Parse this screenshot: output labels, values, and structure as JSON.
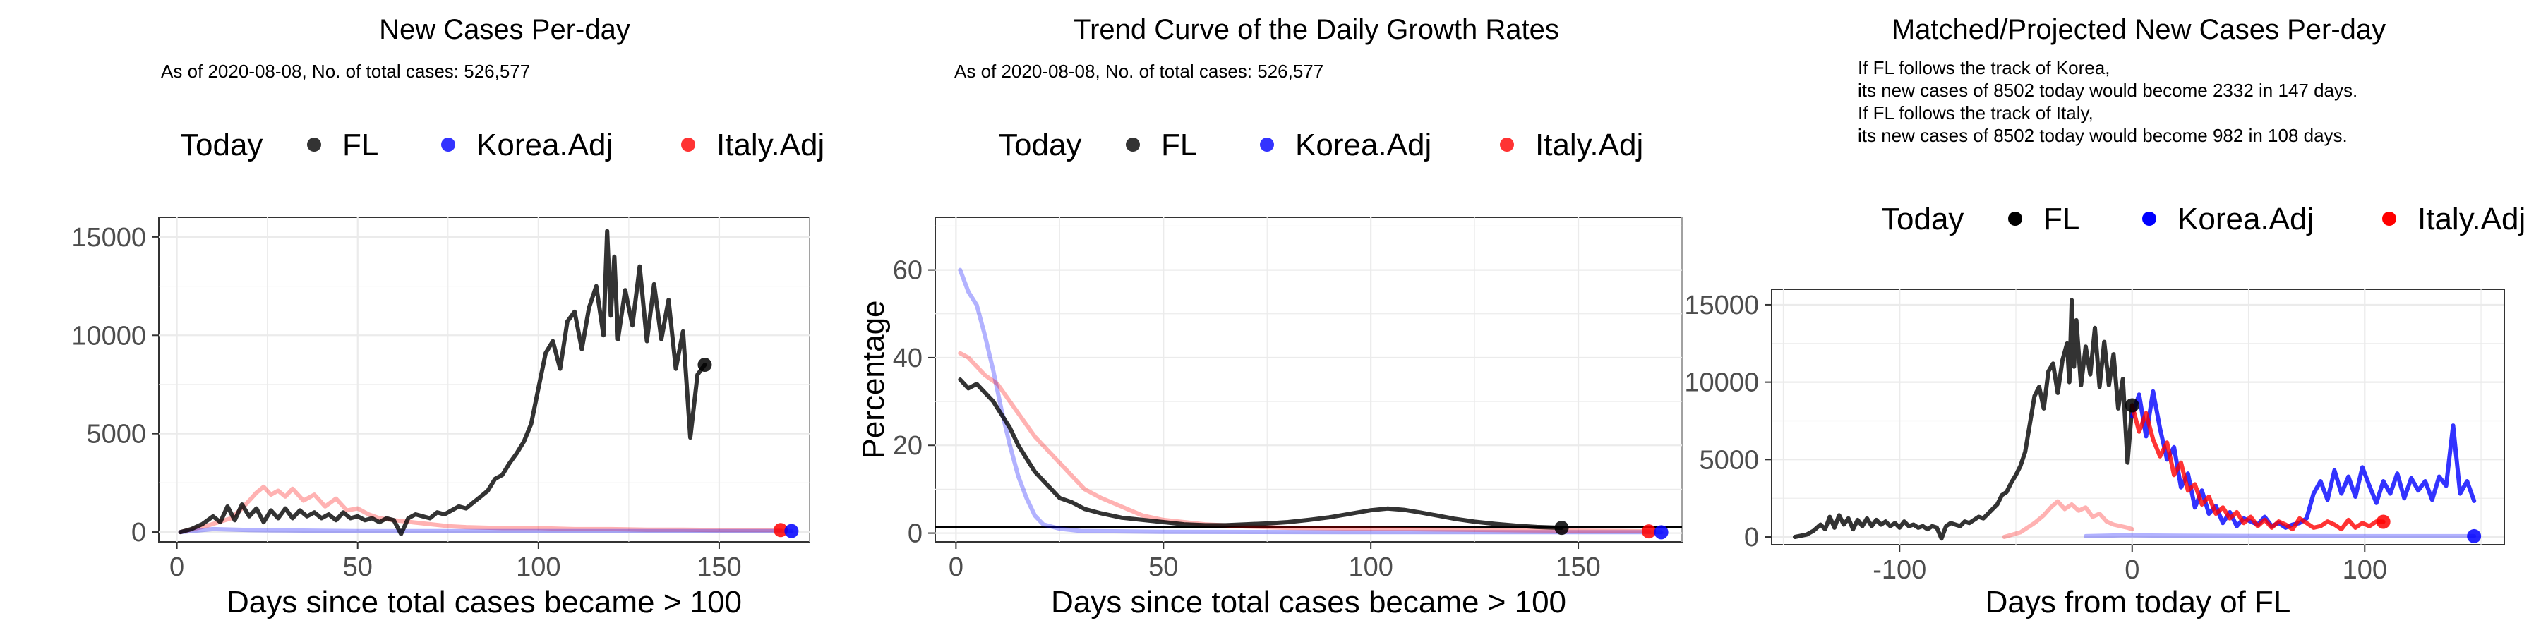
{
  "chart_data": [
    {
      "type": "line",
      "title": "New Cases Per-day",
      "subtitle": "As of 2020-08-08, No. of total cases: 526,577",
      "xlabel": "Days since total cases became > 100",
      "ylabel": "",
      "xlim": [
        -5,
        175
      ],
      "ylim": [
        -500,
        16000
      ],
      "xticks": [
        0,
        50,
        100,
        150
      ],
      "yticks": [
        0,
        5000,
        10000,
        15000
      ],
      "grid": true,
      "legend": {
        "placement": "top",
        "title": "Today",
        "items": [
          "FL",
          "Korea.Adj",
          "Italy.Adj"
        ]
      },
      "series": [
        {
          "name": "Italy.Adj",
          "color": "#ff0000",
          "x": [
            1,
            8,
            15,
            18,
            20,
            22,
            24,
            26,
            28,
            30,
            32,
            35,
            38,
            41,
            44,
            47,
            50,
            53,
            56,
            60,
            65,
            70,
            75,
            80,
            90,
            100,
            110,
            120,
            130,
            140,
            150,
            160,
            167
          ],
          "y": [
            0,
            300,
            700,
            1200,
            1600,
            2000,
            2300,
            1900,
            2100,
            1800,
            2200,
            1600,
            1900,
            1300,
            1700,
            1100,
            1200,
            900,
            700,
            600,
            500,
            400,
            300,
            250,
            200,
            200,
            150,
            150,
            120,
            120,
            100,
            100,
            100
          ]
        },
        {
          "name": "Korea.Adj",
          "color": "#0000ff",
          "x": [
            1,
            10,
            20,
            30,
            50,
            70,
            100,
            130,
            160,
            170
          ],
          "y": [
            0,
            150,
            100,
            80,
            50,
            50,
            50,
            50,
            50,
            50
          ]
        },
        {
          "name": "FL",
          "color": "#000000",
          "x": [
            1,
            4,
            7,
            10,
            12,
            14,
            16,
            18,
            20,
            22,
            24,
            26,
            28,
            30,
            32,
            34,
            36,
            38,
            40,
            42,
            44,
            46,
            48,
            50,
            52,
            54,
            56,
            58,
            60,
            62,
            64,
            66,
            68,
            70,
            72,
            74,
            76,
            78,
            80,
            82,
            84,
            86,
            88,
            90,
            92,
            94,
            96,
            98,
            100,
            102,
            104,
            106,
            108,
            110,
            112,
            114,
            116,
            118,
            119,
            120,
            121,
            122,
            124,
            126,
            128,
            130,
            132,
            134,
            136,
            138,
            140,
            142,
            144,
            146
          ],
          "y": [
            0,
            150,
            400,
            800,
            500,
            1300,
            600,
            1400,
            800,
            1200,
            500,
            1100,
            700,
            1200,
            700,
            1100,
            800,
            1000,
            700,
            900,
            600,
            1000,
            700,
            800,
            600,
            700,
            500,
            700,
            600,
            -100,
            700,
            900,
            800,
            700,
            1000,
            900,
            1100,
            1300,
            1200,
            1500,
            1800,
            2100,
            2700,
            2900,
            3500,
            4000,
            4600,
            5500,
            7300,
            9100,
            9700,
            8300,
            10700,
            11200,
            9300,
            11400,
            12500,
            10000,
            15300,
            11000,
            14000,
            9800,
            12300,
            10500,
            13500,
            9700,
            12600,
            9800,
            11800,
            8300,
            10200,
            4800,
            8000,
            8502
          ]
        }
      ],
      "today_points": [
        {
          "name": "FL",
          "x": 146,
          "y": 8502
        },
        {
          "name": "Italy.Adj",
          "x": 167,
          "y": 100
        },
        {
          "name": "Korea.Adj",
          "x": 170,
          "y": 50
        }
      ]
    },
    {
      "type": "line",
      "title": "Trend Curve of the Daily Growth Rates",
      "subtitle": "As of 2020-08-08, No. of total cases: 526,577",
      "xlabel": "Days since total cases became > 100",
      "ylabel": "Percentage",
      "xlim": [
        -5,
        175
      ],
      "ylim": [
        -2,
        72
      ],
      "xticks": [
        0,
        50,
        100,
        150
      ],
      "yticks": [
        0,
        20,
        40,
        60
      ],
      "grid": true,
      "hline": 1.3,
      "legend": {
        "placement": "top",
        "title": "Today",
        "items": [
          "FL",
          "Korea.Adj",
          "Italy.Adj"
        ]
      },
      "series": [
        {
          "name": "Korea.Adj",
          "color": "#0000ff",
          "x": [
            1,
            3,
            5,
            7,
            9,
            11,
            13,
            15,
            17,
            19,
            21,
            25,
            30,
            50,
            100,
            150,
            170
          ],
          "y": [
            60,
            55,
            52,
            45,
            37,
            28,
            20,
            13,
            8,
            4,
            2,
            1,
            0.5,
            0.3,
            0.2,
            0.2,
            0.2
          ]
        },
        {
          "name": "Italy.Adj",
          "color": "#ff0000",
          "x": [
            1,
            3,
            5,
            7,
            10,
            13,
            16,
            19,
            22,
            25,
            28,
            31,
            35,
            40,
            45,
            50,
            55,
            60,
            70,
            80,
            100,
            120,
            140,
            160,
            167
          ],
          "y": [
            41,
            40,
            38,
            36,
            34,
            30,
            26,
            22,
            19,
            16,
            13,
            10,
            8,
            6,
            4,
            3,
            2.5,
            2,
            1.5,
            1.2,
            1,
            0.8,
            0.6,
            0.5,
            0.4
          ]
        },
        {
          "name": "FL",
          "color": "#000000",
          "x": [
            1,
            3,
            5,
            7,
            9,
            11,
            13,
            15,
            17,
            19,
            21,
            23,
            25,
            28,
            31,
            35,
            40,
            45,
            50,
            55,
            60,
            65,
            70,
            75,
            80,
            85,
            90,
            95,
            100,
            104,
            108,
            112,
            116,
            120,
            125,
            130,
            135,
            140,
            146
          ],
          "y": [
            35,
            33,
            34,
            32,
            30,
            27,
            24,
            20,
            17,
            14,
            12,
            10,
            8,
            7,
            5.5,
            4.5,
            3.5,
            3,
            2.5,
            2,
            1.8,
            1.8,
            2,
            2.2,
            2.5,
            3,
            3.6,
            4.4,
            5.2,
            5.6,
            5.3,
            4.7,
            4,
            3.3,
            2.6,
            2.1,
            1.7,
            1.4,
            1.2
          ]
        }
      ],
      "today_points": [
        {
          "name": "FL",
          "x": 146,
          "y": 1.2
        },
        {
          "name": "Italy.Adj",
          "x": 167,
          "y": 0.4
        },
        {
          "name": "Korea.Adj",
          "x": 170,
          "y": 0.2
        }
      ]
    },
    {
      "type": "line",
      "title": "Matched/Projected New Cases Per-day",
      "annotations": [
        "If FL follows the track of Korea,",
        "its new cases of 8502 today would become 2332 in 147 days.",
        "If FL follows the track of Italy,",
        "its new cases of 8502 today would become 982 in 108 days."
      ],
      "xlabel": "Days from today of FL",
      "ylabel": "",
      "xlim": [
        -155,
        160
      ],
      "ylim": [
        -500,
        16000
      ],
      "xticks": [
        -100,
        0,
        100
      ],
      "yticks": [
        0,
        5000,
        10000,
        15000
      ],
      "grid": true,
      "legend": {
        "placement": "top",
        "title": "Today",
        "items": [
          "FL",
          "Korea.Adj",
          "Italy.Adj"
        ]
      },
      "series": [
        {
          "name": "Italy.Adj",
          "color": "#ff0000",
          "x": [
            -55,
            -48,
            -42,
            -38,
            -35,
            -32,
            -29,
            -26,
            -23,
            -20,
            -17,
            -14,
            -11,
            -8,
            -5,
            -2,
            0
          ],
          "y": [
            0,
            300,
            900,
            1400,
            1900,
            2300,
            1800,
            2100,
            1700,
            1900,
            1300,
            1500,
            1000,
            800,
            700,
            600,
            500
          ],
          "faded": true
        },
        {
          "name": "Korea.Adj",
          "color": "#0000ff",
          "x": [
            -20,
            -5,
            0,
            20,
            60,
            100,
            147
          ],
          "y": [
            50,
            100,
            100,
            80,
            60,
            50,
            50
          ],
          "faded": true
        },
        {
          "name": "FL",
          "color": "#000000",
          "x": [
            -145,
            -140,
            -137,
            -134,
            -132,
            -130,
            -128,
            -126,
            -124,
            -122,
            -120,
            -118,
            -116,
            -114,
            -112,
            -110,
            -108,
            -106,
            -104,
            -102,
            -100,
            -98,
            -96,
            -94,
            -92,
            -90,
            -88,
            -86,
            -84,
            -82,
            -80,
            -78,
            -76,
            -74,
            -72,
            -70,
            -68,
            -66,
            -64,
            -62,
            -60,
            -58,
            -56,
            -54,
            -52,
            -50,
            -48,
            -46,
            -44,
            -42,
            -40,
            -38,
            -36,
            -34,
            -32,
            -30,
            -28,
            -27,
            -26,
            -25,
            -24,
            -22,
            -20,
            -18,
            -16,
            -14,
            -12,
            -10,
            -8,
            -6,
            -4,
            -2,
            0
          ],
          "y": [
            0,
            150,
            400,
            800,
            500,
            1300,
            600,
            1400,
            800,
            1200,
            500,
            1100,
            700,
            1200,
            700,
            1100,
            800,
            1000,
            700,
            900,
            600,
            1000,
            700,
            800,
            600,
            700,
            500,
            700,
            600,
            -100,
            700,
            900,
            800,
            700,
            1000,
            900,
            1100,
            1300,
            1200,
            1500,
            1800,
            2100,
            2700,
            2900,
            3500,
            4000,
            4600,
            5500,
            7300,
            9100,
            9700,
            8300,
            10700,
            11200,
            9300,
            11400,
            12500,
            10000,
            15300,
            11000,
            14000,
            9800,
            12300,
            10500,
            13500,
            9700,
            12600,
            9800,
            11800,
            8300,
            10200,
            4800,
            8502
          ]
        },
        {
          "name": "Korea.Adj",
          "color": "#0000ff",
          "x": [
            0,
            3,
            6,
            9,
            12,
            15,
            18,
            21,
            24,
            27,
            30,
            33,
            36,
            39,
            42,
            45,
            48,
            51,
            54,
            57,
            60,
            63,
            66,
            69,
            72,
            75,
            78,
            81,
            84,
            87,
            90,
            93,
            96,
            99,
            102,
            105,
            108,
            111,
            114,
            117,
            120,
            123,
            126,
            129,
            132,
            135,
            138,
            141,
            144,
            147
          ],
          "y": [
            7800,
            9200,
            6500,
            9400,
            7000,
            5000,
            5800,
            3200,
            4100,
            1900,
            3000,
            1500,
            2000,
            900,
            1600,
            700,
            1200,
            1000,
            800,
            1300,
            700,
            900,
            600,
            800,
            900,
            1200,
            2800,
            3600,
            2400,
            4300,
            2800,
            3900,
            2600,
            4500,
            3300,
            2200,
            3600,
            2800,
            4100,
            2500,
            3800,
            3000,
            3600,
            2400,
            3900,
            3300,
            7200,
            2800,
            3600,
            2332
          ]
        },
        {
          "name": "Italy.Adj",
          "color": "#ff0000",
          "x": [
            0,
            3,
            6,
            9,
            12,
            15,
            18,
            21,
            24,
            27,
            30,
            33,
            36,
            39,
            42,
            45,
            48,
            51,
            54,
            57,
            60,
            63,
            66,
            69,
            72,
            75,
            78,
            81,
            84,
            87,
            90,
            93,
            96,
            99,
            102,
            105,
            108
          ],
          "y": [
            8502,
            6800,
            8000,
            6300,
            5200,
            6100,
            4000,
            4800,
            3000,
            3400,
            2100,
            2600,
            1500,
            1900,
            1200,
            1600,
            900,
            1300,
            700,
            1100,
            600,
            1000,
            800,
            500,
            1200,
            900,
            600,
            700,
            1000,
            800,
            500,
            1100,
            600,
            900,
            700,
            1000,
            982
          ]
        }
      ],
      "today_points": [
        {
          "name": "FL",
          "x": 0,
          "y": 8502
        },
        {
          "name": "Italy.Adj",
          "x": 108,
          "y": 982
        },
        {
          "name": "Korea.Adj",
          "x": 147,
          "y": 50
        }
      ]
    }
  ]
}
